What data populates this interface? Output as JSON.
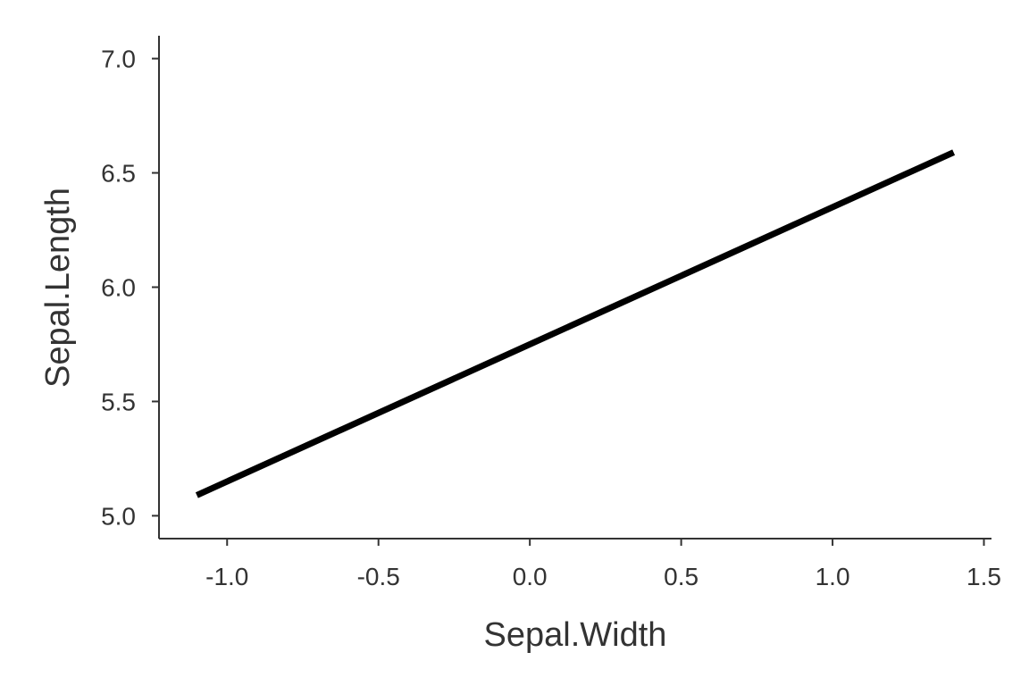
{
  "chart_data": {
    "type": "line",
    "title": "",
    "xlabel": "Sepal.Width",
    "ylabel": "Sepal.Length",
    "xlim": [
      -1.225,
      1.525
    ],
    "ylim": [
      4.9,
      7.1
    ],
    "x_ticks": [
      -1.0,
      -0.5,
      0.0,
      0.5,
      1.0,
      1.5
    ],
    "x_tick_labels": [
      "-1.0",
      "-0.5",
      "0.0",
      "0.5",
      "1.0",
      "1.5"
    ],
    "y_ticks": [
      5.0,
      5.5,
      6.0,
      6.5,
      7.0
    ],
    "y_tick_labels": [
      "5.0",
      "5.5",
      "6.0",
      "6.5",
      "7.0"
    ],
    "grid": false,
    "legend": "none",
    "series": [
      {
        "color": "#000000",
        "x": [
          -1.1,
          1.4
        ],
        "y": [
          5.09,
          6.59
        ]
      }
    ]
  }
}
